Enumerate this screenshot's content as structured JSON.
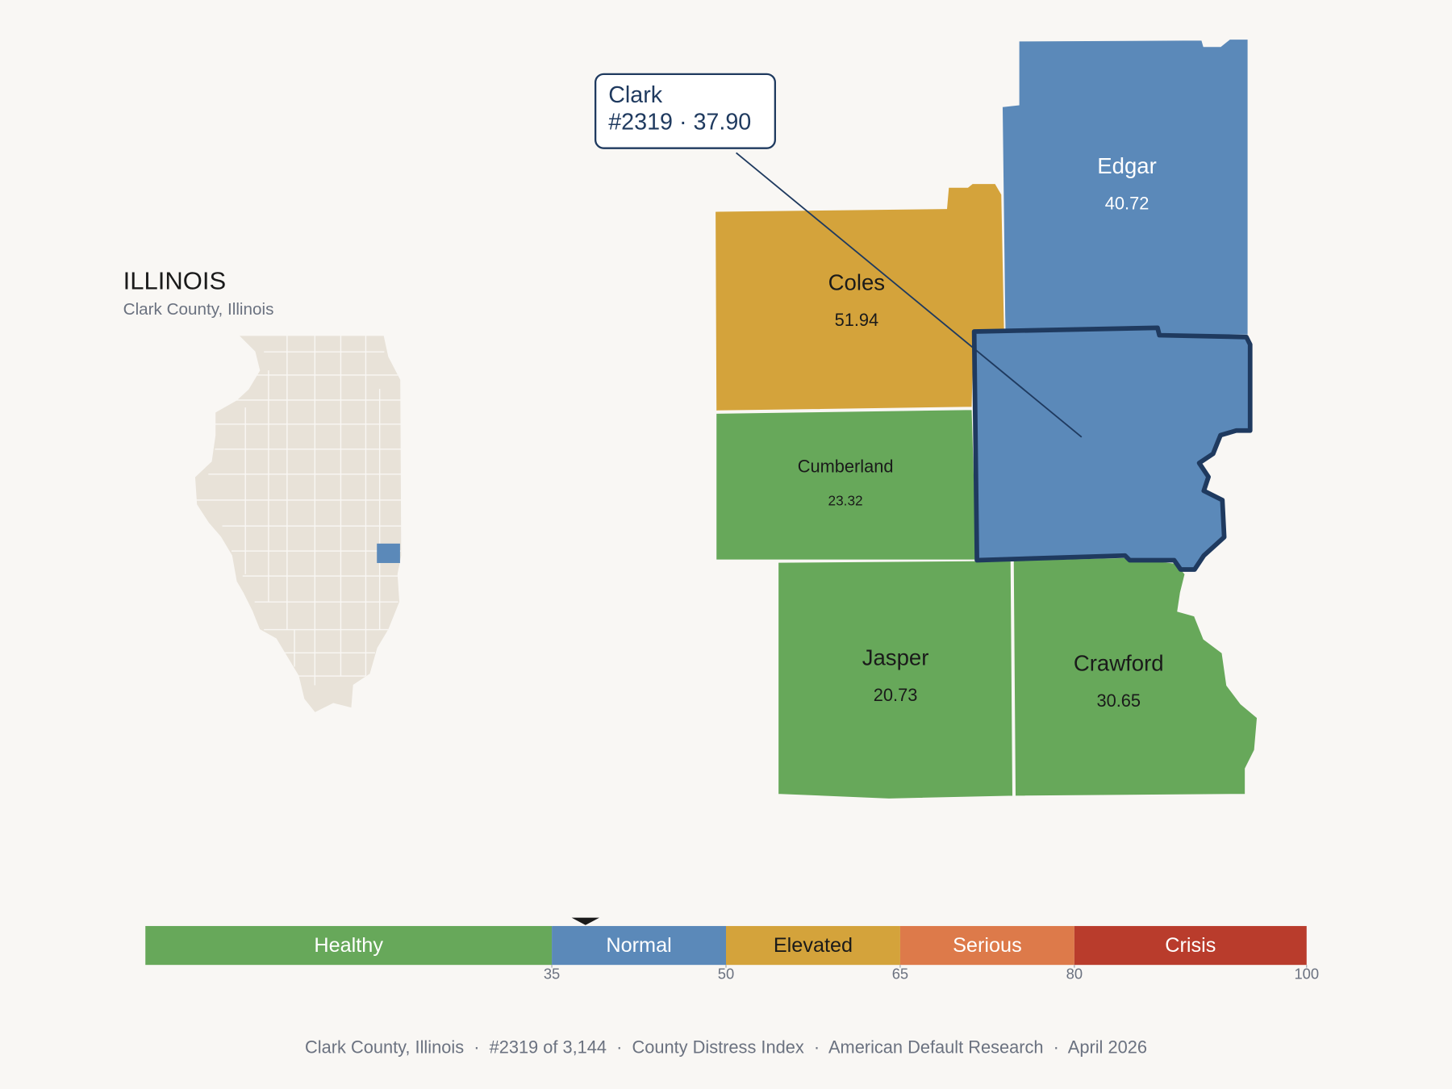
{
  "header": {
    "title": "ILLINOIS",
    "subtitle": "Clark County, Illinois"
  },
  "callout": {
    "name": "Clark",
    "detail": "#2319 · 37.90",
    "value": 37.9,
    "color": "#5b89b9"
  },
  "counties": [
    {
      "name": "Edgar",
      "value": 40.72,
      "color": "#5b89b9"
    },
    {
      "name": "Coles",
      "value": 51.94,
      "color": "#d4a33b"
    },
    {
      "name": "Cumberland",
      "value": 23.32,
      "color": "#67a85a"
    },
    {
      "name": "Jasper",
      "value": 20.73,
      "color": "#67a85a"
    },
    {
      "name": "Crawford",
      "value": 30.65,
      "color": "#67a85a"
    }
  ],
  "legend": {
    "lim": [
      0,
      100
    ],
    "ticks": [
      35,
      50,
      65,
      80,
      100
    ],
    "bands": [
      {
        "name": "Healthy",
        "color": "#67a85a"
      },
      {
        "name": "Normal",
        "color": "#5b89b9"
      },
      {
        "name": "Elevated",
        "color": "#d4a33b"
      },
      {
        "name": "Serious",
        "color": "#dd7a4a"
      },
      {
        "name": "Crisis",
        "color": "#b93c2c"
      }
    ]
  },
  "footer": "Clark County, Illinois  ·  #2319 of 3,144  ·  County Distress Index  ·  American Default Research  ·  April 2026"
}
